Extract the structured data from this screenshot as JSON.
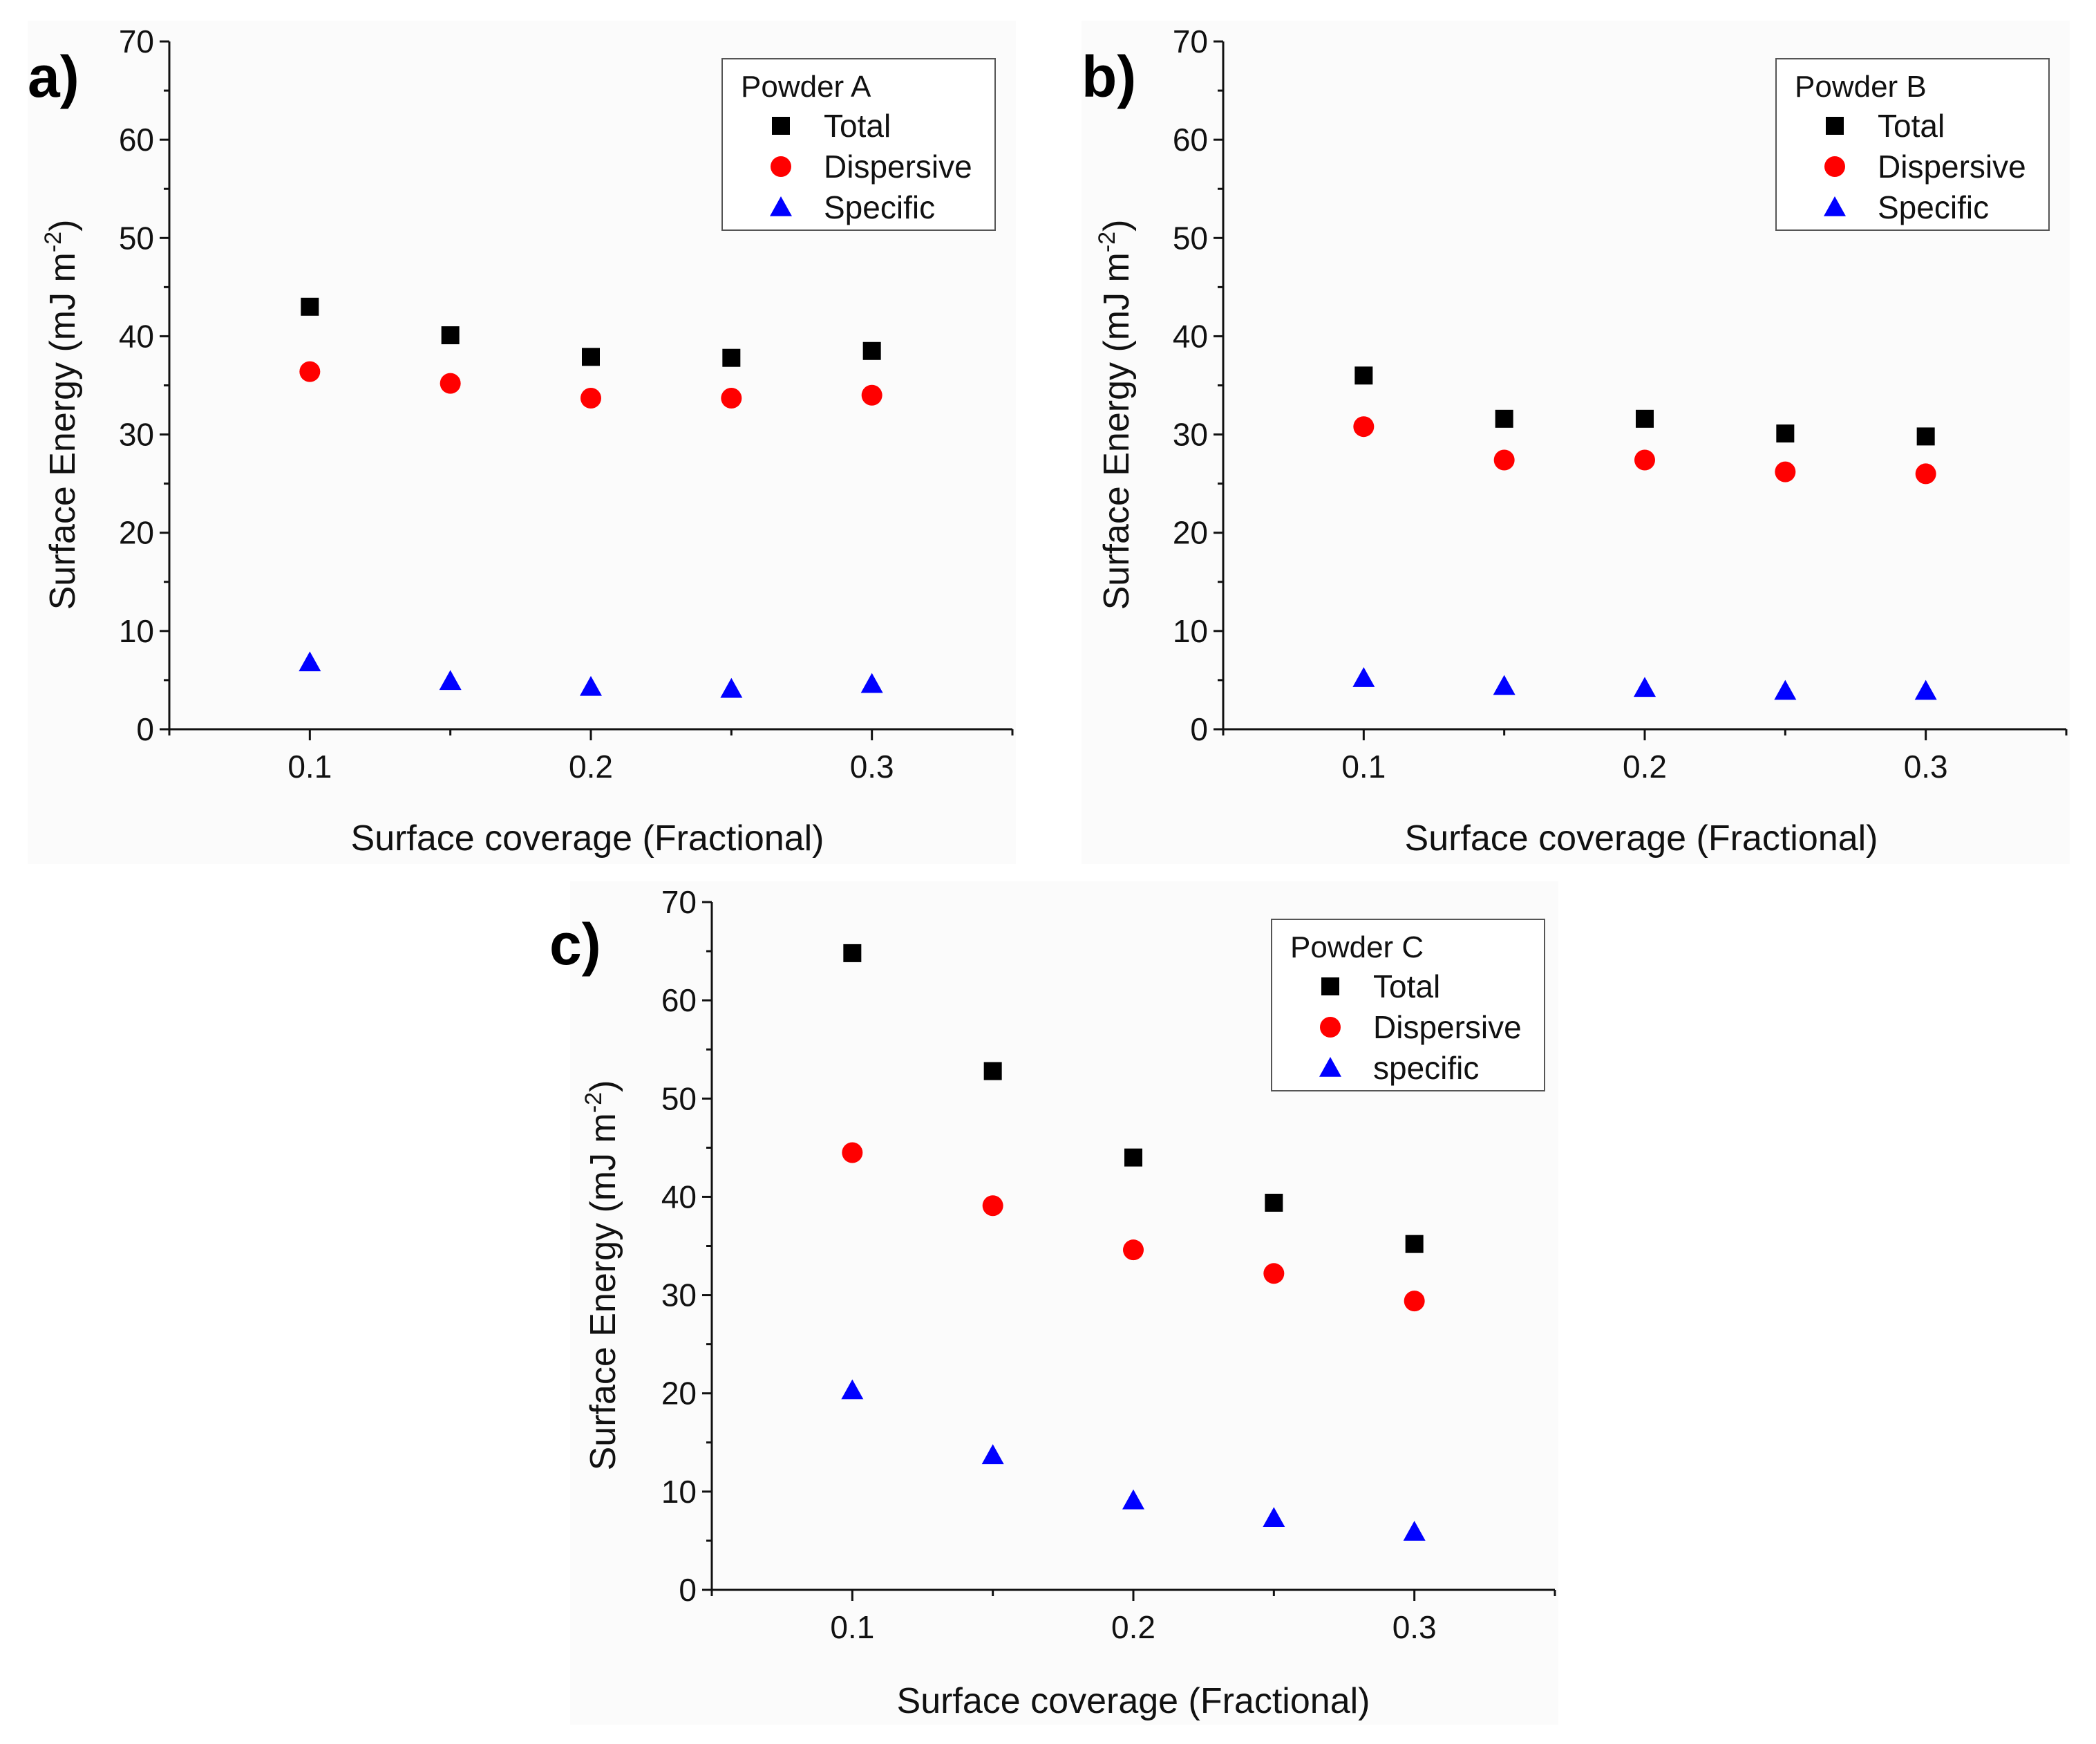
{
  "chart_data": [
    {
      "type": "scatter",
      "panel_label": "a)",
      "title": "",
      "xlabel": "Surface coverage (Fractional)",
      "ylabel_main": "Surface Energy (mJ m",
      "ylabel_sup": "-2",
      "ylabel_close": ")",
      "xlim": [
        0.05,
        0.35
      ],
      "ylim": [
        0,
        70
      ],
      "xticks": [
        0.1,
        0.2,
        0.3
      ],
      "xtick_labels": [
        "0.1",
        "0.2",
        "0.3"
      ],
      "yticks": [
        0,
        10,
        20,
        30,
        40,
        50,
        60,
        70
      ],
      "ytick_labels": [
        "0",
        "10",
        "20",
        "30",
        "40",
        "50",
        "60",
        "70"
      ],
      "x": [
        0.1,
        0.15,
        0.2,
        0.25,
        0.3
      ],
      "legend_title": "Powder A",
      "legend_position": "top-right",
      "series": [
        {
          "name": "Total",
          "marker": "square",
          "color": "#000000",
          "values": [
            43,
            40.1,
            37.9,
            37.8,
            38.5
          ]
        },
        {
          "name": "Dispersive",
          "marker": "circle",
          "color": "#ff0000",
          "values": [
            36.4,
            35.2,
            33.7,
            33.7,
            34.0
          ]
        },
        {
          "name": "Specific",
          "marker": "triangle",
          "color": "#0000ff",
          "values": [
            6.8,
            4.9,
            4.3,
            4.1,
            4.6
          ]
        }
      ]
    },
    {
      "type": "scatter",
      "panel_label": "b)",
      "title": "",
      "xlabel": "Surface coverage (Fractional)",
      "ylabel_main": "Surface Energy (mJ m",
      "ylabel_sup": "-2",
      "ylabel_close": ")",
      "xlim": [
        0.05,
        0.35
      ],
      "ylim": [
        0,
        70
      ],
      "xticks": [
        0.1,
        0.2,
        0.3
      ],
      "xtick_labels": [
        "0.1",
        "0.2",
        "0.3"
      ],
      "yticks": [
        0,
        10,
        20,
        30,
        40,
        50,
        60,
        70
      ],
      "ytick_labels": [
        "0",
        "10",
        "20",
        "30",
        "40",
        "50",
        "60",
        "70"
      ],
      "x": [
        0.1,
        0.15,
        0.2,
        0.25,
        0.3
      ],
      "legend_title": "Powder B",
      "legend_position": "top-right",
      "series": [
        {
          "name": "Total",
          "marker": "square",
          "color": "#000000",
          "values": [
            36,
            31.6,
            31.6,
            30.1,
            29.8
          ]
        },
        {
          "name": "Dispersive",
          "marker": "circle",
          "color": "#ff0000",
          "values": [
            30.8,
            27.4,
            27.4,
            26.2,
            26.0
          ]
        },
        {
          "name": "Specific",
          "marker": "triangle",
          "color": "#0000ff",
          "values": [
            5.2,
            4.4,
            4.2,
            3.9,
            3.9
          ]
        }
      ]
    },
    {
      "type": "scatter",
      "panel_label": "c)",
      "title": "",
      "xlabel": "Surface coverage (Fractional)",
      "ylabel_main": "Surface Energy (mJ m",
      "ylabel_sup": "-2",
      "ylabel_close": ")",
      "xlim": [
        0.05,
        0.35
      ],
      "ylim": [
        0,
        70
      ],
      "xticks": [
        0.1,
        0.2,
        0.3
      ],
      "xtick_labels": [
        "0.1",
        "0.2",
        "0.3"
      ],
      "yticks": [
        0,
        10,
        20,
        30,
        40,
        50,
        60,
        70
      ],
      "ytick_labels": [
        "0",
        "10",
        "20",
        "30",
        "40",
        "50",
        "60",
        "70"
      ],
      "x": [
        0.1,
        0.15,
        0.2,
        0.25,
        0.3
      ],
      "legend_title": "Powder C",
      "legend_position": "top-right",
      "series": [
        {
          "name": "Total",
          "marker": "square",
          "color": "#000000",
          "values": [
            64.8,
            52.8,
            44.0,
            39.4,
            35.2
          ]
        },
        {
          "name": "Dispersive",
          "marker": "circle",
          "color": "#ff0000",
          "values": [
            44.5,
            39.1,
            34.6,
            32.2,
            29.4
          ]
        },
        {
          "name": "specific",
          "marker": "triangle",
          "color": "#0000ff",
          "values": [
            20.3,
            13.7,
            9.1,
            7.3,
            5.9
          ]
        }
      ]
    }
  ]
}
